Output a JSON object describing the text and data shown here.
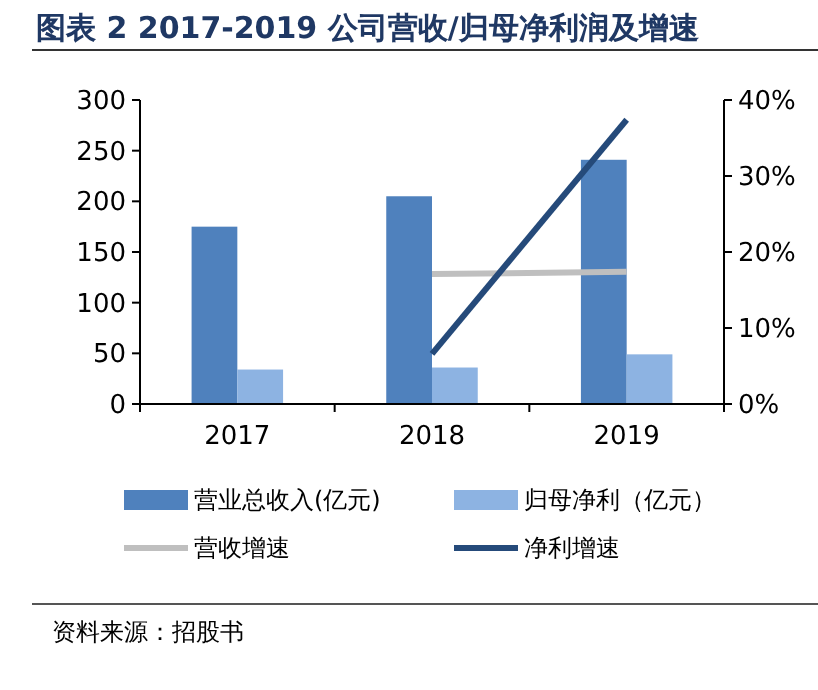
{
  "chart_data": {
    "type": "bar",
    "title": "图表 2 2017-2019 公司营收/归母净利润及增速",
    "categories": [
      "2017",
      "2018",
      "2019"
    ],
    "series": [
      {
        "name": "营业总收入(亿元)",
        "color": "#4f81bd",
        "values": [
          175,
          205,
          241
        ]
      },
      {
        "name": "归母净利（亿元）",
        "color": "#8db3e2",
        "values": [
          34,
          36,
          49
        ]
      },
      {
        "name": "营收增速",
        "type": "line",
        "axis": "y2",
        "color": "#bfbfbf",
        "values": [
          null,
          17.1,
          17.4
        ]
      },
      {
        "name": "净利增速",
        "type": "line",
        "axis": "y2",
        "color": "#254a7a",
        "values": [
          null,
          6.6,
          37.4
        ]
      }
    ],
    "ylim": [
      0,
      300
    ],
    "yticks": [
      0,
      50,
      100,
      150,
      200,
      250,
      300
    ],
    "y2lim": [
      0,
      40
    ],
    "y2ticks": [
      {
        "value": 0,
        "label": "0%"
      },
      {
        "value": 10,
        "label": "10%"
      },
      {
        "value": 20,
        "label": "20%"
      },
      {
        "value": 30,
        "label": "30%"
      },
      {
        "value": 40,
        "label": "40%"
      }
    ],
    "grid": false,
    "legend": "bottom",
    "annotations": [
      "资料来源：招股书"
    ]
  }
}
